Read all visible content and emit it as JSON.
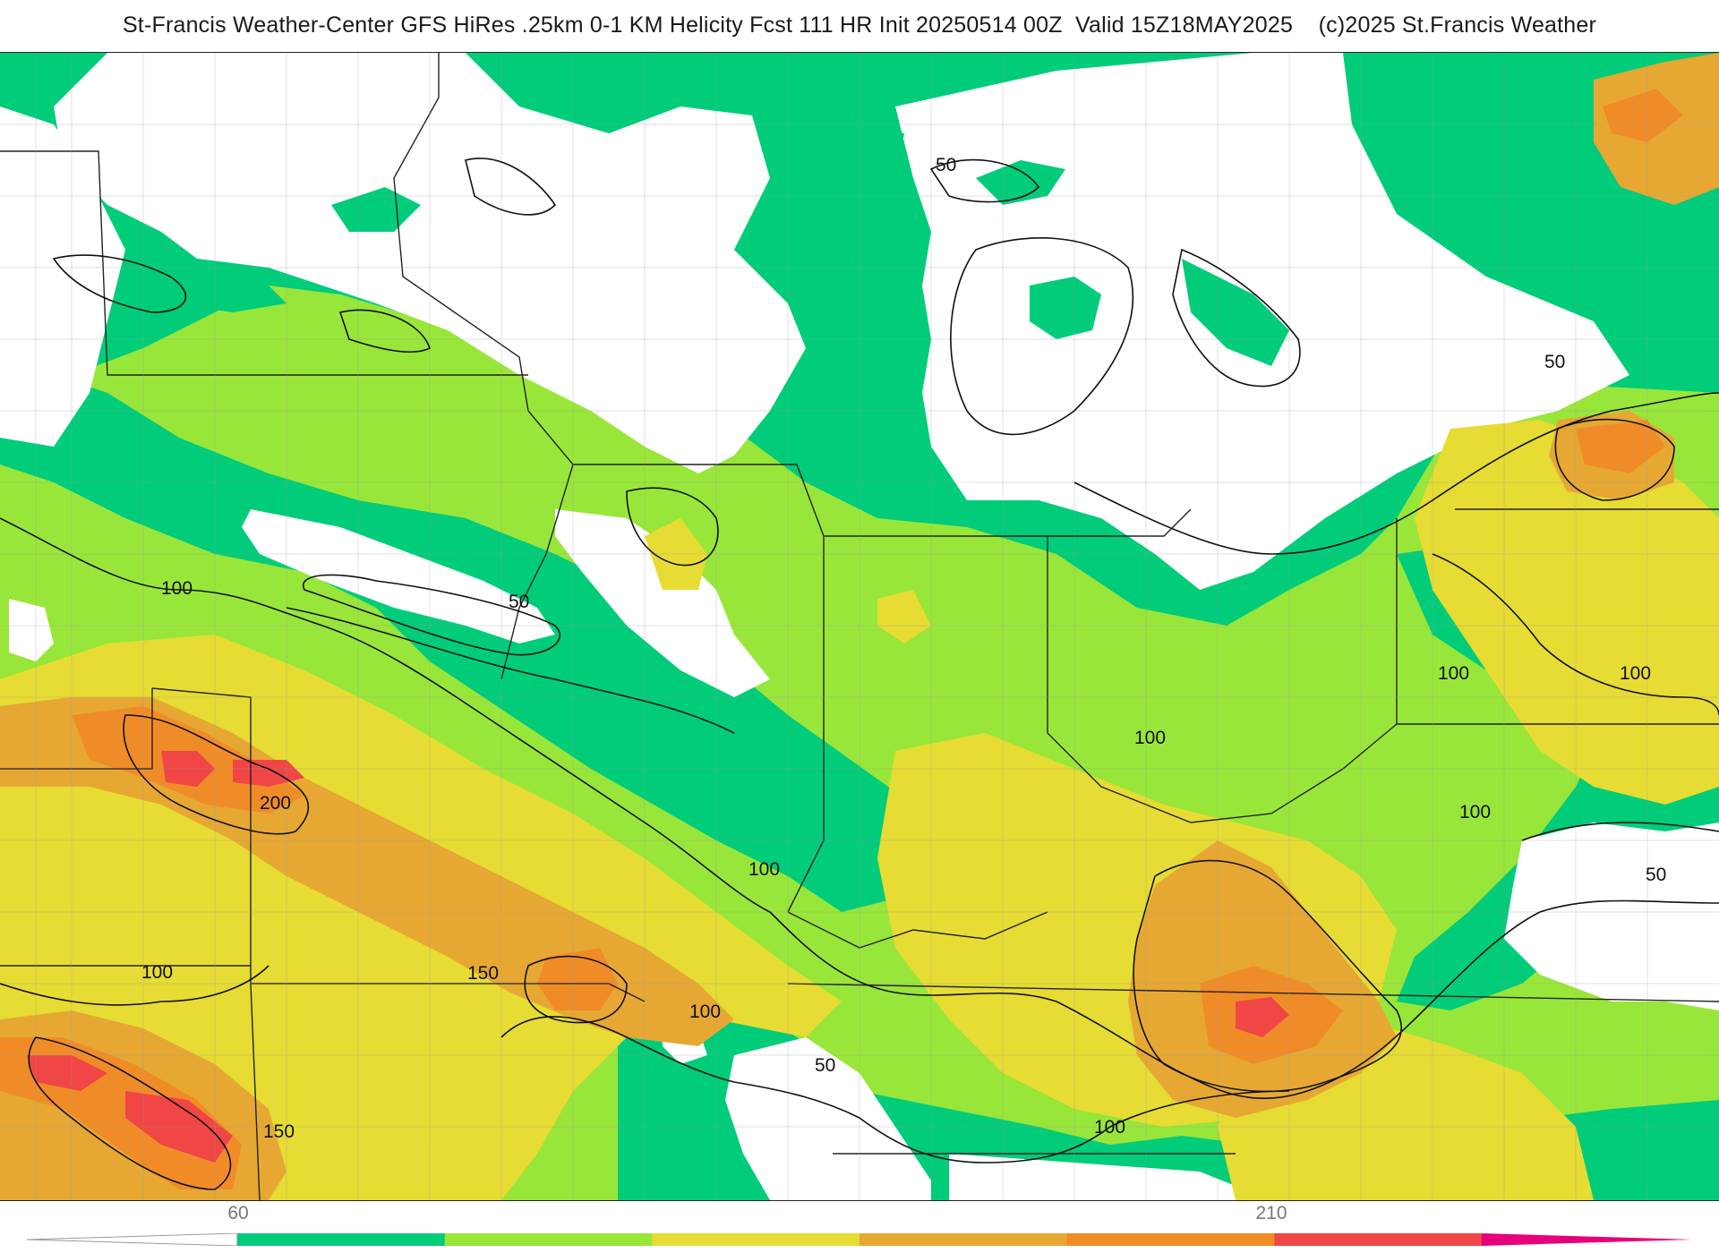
{
  "title": "St-Francis Weather-Center GFS HiRes .25km 0-1 KM Helicity Fcst 111 HR Init 20250514 00Z  Valid 15Z18MAY2025    (c)2025 St.Francis Weather",
  "contour_labels": [
    "50",
    "50",
    "50",
    "50",
    "50",
    "100",
    "100",
    "100",
    "100",
    "100",
    "100",
    "100",
    "100",
    "100",
    "150",
    "150",
    "200"
  ],
  "colorbar": {
    "labels": [
      "60",
      "210"
    ],
    "colors": [
      "#00cc7a",
      "#99e63a",
      "#e6dc33",
      "#e6a833",
      "#f08c28",
      "#f04646",
      "#e6007a"
    ]
  }
}
